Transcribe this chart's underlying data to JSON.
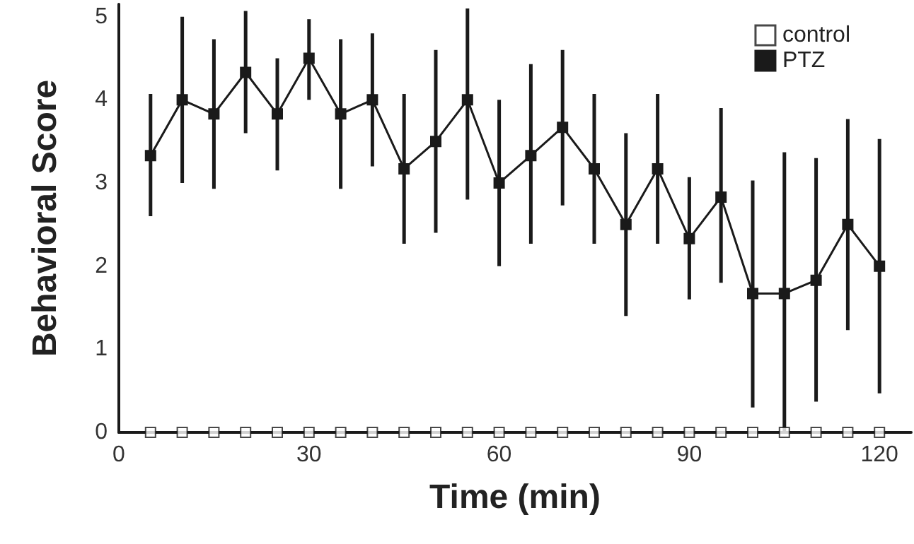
{
  "chart_data": {
    "type": "line",
    "xlabel": "Time (min)",
    "ylabel": "Behavioral Score",
    "x": [
      5,
      10,
      15,
      20,
      25,
      30,
      35,
      40,
      45,
      50,
      55,
      60,
      65,
      70,
      75,
      80,
      85,
      90,
      95,
      100,
      105,
      110,
      115,
      120
    ],
    "series": [
      {
        "name": "control",
        "type": "scatter",
        "color": "#ffffff",
        "values": [
          0,
          0,
          0,
          0,
          0,
          0,
          0,
          0,
          0,
          0,
          0,
          0,
          0,
          0,
          0,
          0,
          0,
          0,
          0,
          0,
          0,
          0,
          0,
          0
        ]
      },
      {
        "name": "PTZ",
        "color": "#1a1a1a",
        "values": [
          3.33,
          4.0,
          3.83,
          4.33,
          3.83,
          4.5,
          3.83,
          4.0,
          3.17,
          3.5,
          4.0,
          3.0,
          3.33,
          3.67,
          3.17,
          2.5,
          3.17,
          2.33,
          2.83,
          1.67,
          1.67,
          1.83,
          2.5,
          2.0
        ],
        "errors": [
          [
            2.6,
            4.07
          ],
          [
            3.0,
            5.0
          ],
          [
            2.93,
            4.73
          ],
          [
            3.6,
            5.07
          ],
          [
            3.15,
            4.5
          ],
          [
            4.0,
            4.97
          ],
          [
            2.93,
            4.73
          ],
          [
            3.2,
            4.8
          ],
          [
            2.27,
            4.07
          ],
          [
            2.4,
            4.6
          ],
          [
            2.8,
            5.1
          ],
          [
            2.0,
            4.0
          ],
          [
            2.27,
            4.43
          ],
          [
            2.73,
            4.6
          ],
          [
            2.27,
            4.07
          ],
          [
            1.4,
            3.6
          ],
          [
            2.27,
            4.07
          ],
          [
            1.6,
            3.07
          ],
          [
            1.8,
            3.9
          ],
          [
            0.3,
            3.03
          ],
          [
            0,
            3.37
          ],
          [
            0.37,
            3.3
          ],
          [
            1.23,
            3.77
          ],
          [
            0.47,
            3.53
          ]
        ]
      }
    ],
    "xlim": [
      0,
      125
    ],
    "xticks": [
      0,
      30,
      60,
      90,
      120
    ],
    "ylim": [
      0,
      5.15
    ],
    "yticks": [
      0,
      1,
      2,
      3,
      4,
      5
    ],
    "grid": false,
    "legend": "top right",
    "marker": "square",
    "line_style": "solid"
  }
}
